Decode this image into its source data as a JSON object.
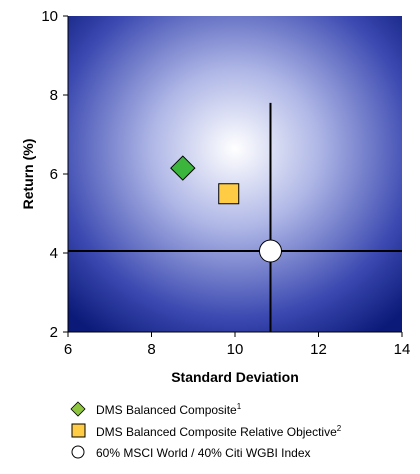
{
  "chart_data": {
    "type": "scatter",
    "title": "",
    "xlabel": "Standard Deviation",
    "ylabel": "Return (%)",
    "xlim": [
      6,
      14
    ],
    "ylim": [
      2,
      10
    ],
    "xticks": [
      "6",
      "8",
      "10",
      "12",
      "14"
    ],
    "yticks": [
      "2",
      "4",
      "6",
      "8",
      "10"
    ],
    "grid": false,
    "legend_position": "bottom",
    "background": "radial gradient, white center to navy",
    "reference_lines": {
      "x": 10.85,
      "y": 4.05
    },
    "series": [
      {
        "name": "DMS Balanced Composite",
        "footnote": "1",
        "marker": "diamond",
        "color": "#3cb53c",
        "x": 8.75,
        "y": 6.15
      },
      {
        "name": "DMS Balanced Composite Relative Objective",
        "footnote": "2",
        "marker": "square",
        "color": "#ffcc44",
        "x": 9.85,
        "y": 5.5
      },
      {
        "name": "60% MSCI World / 40% Citi WGBI Index",
        "footnote": "",
        "marker": "circle",
        "color": "#ffffff",
        "x": 10.85,
        "y": 4.05
      }
    ]
  }
}
